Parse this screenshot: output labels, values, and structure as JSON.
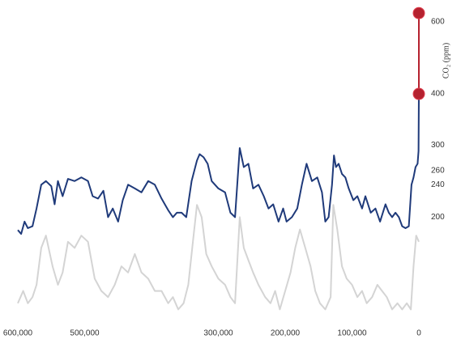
{
  "chart_data": {
    "type": "line",
    "y_axis_label": "CO₂ (ppm)",
    "xlim": [
      600000,
      0
    ],
    "xticks": [
      {
        "value": 600000,
        "label": "600,000"
      },
      {
        "value": 500000,
        "label": "500,000"
      },
      {
        "value": 300000,
        "label": "300,000"
      },
      {
        "value": 200000,
        "label": "200,000"
      },
      {
        "value": 100000,
        "label": "100,000"
      },
      0
    ],
    "ylim": [
      115,
      648
    ],
    "yscale": "log",
    "yticks": [
      200,
      240,
      260,
      300,
      400,
      600
    ],
    "y2lim": [
      -10,
      40
    ],
    "series": [
      {
        "color": "#1f3a7a",
        "x": [
          600000,
          595000,
          590000,
          585000,
          578000,
          572000,
          565000,
          558000,
          550000,
          545000,
          540000,
          533000,
          525000,
          515000,
          505000,
          495000,
          488000,
          480000,
          472000,
          465000,
          458000,
          450000,
          443000,
          435000,
          425000,
          415000,
          405000,
          395000,
          385000,
          375000,
          368000,
          362000,
          355000,
          348000,
          340000,
          332000,
          328000,
          322000,
          316000,
          310000,
          300000,
          290000,
          282000,
          275000,
          268000,
          262000,
          255000,
          248000,
          240000,
          232000,
          225000,
          218000,
          210000,
          203000,
          198000,
          190000,
          182000,
          175000,
          168000,
          160000,
          152000,
          145000,
          140000,
          135000,
          130000,
          127000,
          124000,
          120000,
          115000,
          110000,
          105000,
          98000,
          92000,
          85000,
          80000,
          72000,
          65000,
          58000,
          50000,
          45000,
          40000,
          35000,
          30000,
          25000,
          20000,
          15000,
          11000,
          8000,
          5000,
          2000,
          500,
          0
        ],
        "values": [
          186,
          182,
          195,
          188,
          190,
          210,
          240,
          245,
          238,
          215,
          245,
          225,
          248,
          245,
          250,
          245,
          225,
          222,
          232,
          200,
          210,
          195,
          220,
          240,
          235,
          230,
          245,
          240,
          222,
          208,
          200,
          205,
          205,
          200,
          245,
          275,
          285,
          280,
          270,
          245,
          235,
          230,
          205,
          200,
          295,
          265,
          270,
          235,
          240,
          225,
          210,
          215,
          195,
          210,
          195,
          200,
          210,
          240,
          270,
          245,
          250,
          230,
          195,
          200,
          240,
          283,
          265,
          270,
          255,
          250,
          235,
          220,
          225,
          210,
          225,
          205,
          210,
          195,
          215,
          205,
          200,
          205,
          200,
          190,
          188,
          190,
          240,
          250,
          265,
          270,
          290,
          400
        ]
      },
      {
        "color": "#d4d4d4",
        "axis": "y2",
        "x": [
          600000,
          592000,
          585000,
          578000,
          572000,
          565000,
          558000,
          548000,
          540000,
          533000,
          525000,
          515000,
          505000,
          495000,
          485000,
          475000,
          465000,
          455000,
          445000,
          435000,
          425000,
          415000,
          405000,
          395000,
          385000,
          375000,
          368000,
          360000,
          352000,
          345000,
          338000,
          332000,
          325000,
          318000,
          310000,
          300000,
          290000,
          282000,
          275000,
          268000,
          262000,
          255000,
          248000,
          240000,
          230000,
          222000,
          215000,
          208000,
          200000,
          192000,
          185000,
          178000,
          170000,
          162000,
          155000,
          148000,
          140000,
          132000,
          128000,
          122000,
          115000,
          108000,
          100000,
          92000,
          85000,
          78000,
          70000,
          62000,
          55000,
          48000,
          40000,
          32000,
          25000,
          18000,
          12000,
          8000,
          4000,
          0
        ],
        "values": [
          -8,
          -6,
          -8,
          -7,
          -5,
          1,
          3,
          -2,
          -5,
          -3,
          2,
          1,
          3,
          2,
          -4,
          -6,
          -7,
          -5,
          -2,
          -3,
          0,
          -3,
          -4,
          -6,
          -6,
          -8,
          -7,
          -9,
          -8,
          -5,
          2,
          8,
          6,
          0,
          -2,
          -4,
          -5,
          -7,
          -8,
          6,
          1,
          -1,
          -3,
          -5,
          -7,
          -8,
          -6,
          -9,
          -6,
          -3,
          1,
          4,
          1,
          -2,
          -6,
          -8,
          -9,
          -7,
          8,
          4,
          -2,
          -4,
          -5,
          -7,
          -6,
          -8,
          -7,
          -5,
          -6,
          -7,
          -9,
          -8,
          -9,
          -8,
          -9,
          -2,
          3,
          2
        ]
      },
      {
        "color": "#b5222f",
        "x": [
          0,
          0
        ],
        "values": [
          400,
          630
        ]
      }
    ]
  }
}
